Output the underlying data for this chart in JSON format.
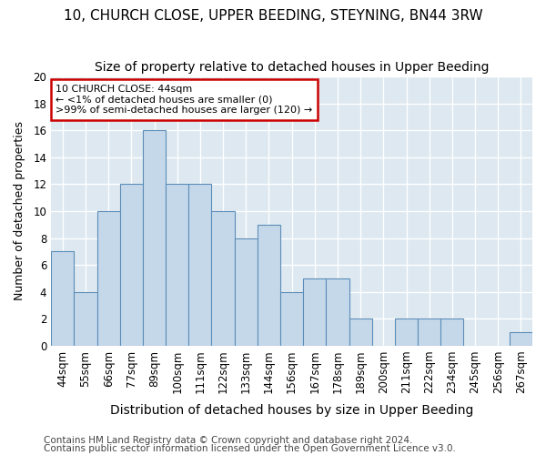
{
  "title1": "10, CHURCH CLOSE, UPPER BEEDING, STEYNING, BN44 3RW",
  "title2": "Size of property relative to detached houses in Upper Beeding",
  "xlabel": "Distribution of detached houses by size in Upper Beeding",
  "ylabel": "Number of detached properties",
  "categories": [
    "44sqm",
    "55sqm",
    "66sqm",
    "77sqm",
    "89sqm",
    "100sqm",
    "111sqm",
    "122sqm",
    "133sqm",
    "144sqm",
    "156sqm",
    "167sqm",
    "178sqm",
    "189sqm",
    "200sqm",
    "211sqm",
    "222sqm",
    "234sqm",
    "245sqm",
    "256sqm",
    "267sqm"
  ],
  "values": [
    7,
    4,
    10,
    12,
    16,
    12,
    12,
    10,
    8,
    9,
    4,
    5,
    5,
    2,
    0,
    2,
    2,
    2,
    0,
    0,
    1
  ],
  "bar_color": "#c5d8ea",
  "bar_edge_color": "#5b8db8",
  "annotation_text": "10 CHURCH CLOSE: 44sqm\n← <1% of detached houses are smaller (0)\n>99% of semi-detached houses are larger (120) →",
  "annotation_box_color": "#ffffff",
  "annotation_box_edge": "#cc0000",
  "ylim": [
    0,
    20
  ],
  "yticks": [
    0,
    2,
    4,
    6,
    8,
    10,
    12,
    14,
    16,
    18,
    20
  ],
  "footer1": "Contains HM Land Registry data © Crown copyright and database right 2024.",
  "footer2": "Contains public sector information licensed under the Open Government Licence v3.0.",
  "fig_bg_color": "#ffffff",
  "plot_bg_color": "#dde8f0",
  "grid_color": "#ffffff",
  "title1_fontsize": 11,
  "title2_fontsize": 10,
  "xlabel_fontsize": 10,
  "ylabel_fontsize": 9,
  "tick_fontsize": 8.5,
  "footer_fontsize": 7.5
}
